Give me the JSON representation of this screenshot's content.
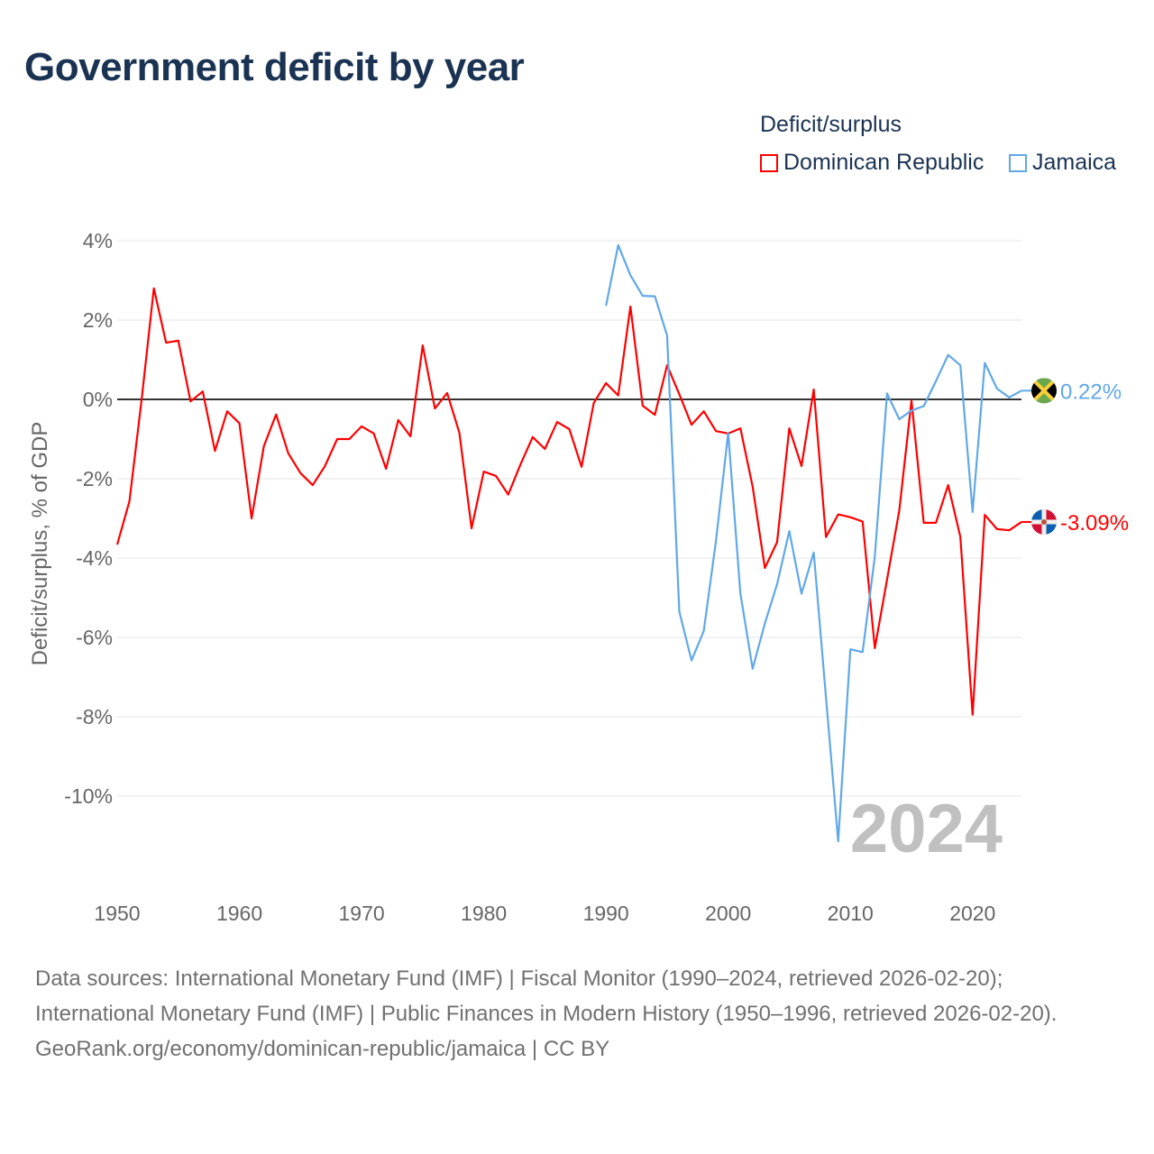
{
  "chart_data": {
    "type": "line",
    "title": "Government deficit by year",
    "ylabel": "Deficit/surplus, % of GDP",
    "xlabel": "",
    "xlim": [
      1950,
      2024
    ],
    "ylim": [
      -12,
      4
    ],
    "xticks": [
      1950,
      1960,
      1970,
      1980,
      1990,
      2000,
      2010,
      2020
    ],
    "yticks": [
      4,
      2,
      0,
      -2,
      -4,
      -6,
      -8,
      -10
    ],
    "ytick_labels": [
      "4%",
      "2%",
      "0%",
      "-2%",
      "-4%",
      "-6%",
      "-8%",
      "-10%"
    ],
    "grid": true,
    "legend_title": "Deficit/surplus",
    "legend_position": "top-right",
    "year_watermark": "2024",
    "series": [
      {
        "name": "Dominican Republic",
        "color": "#ff0000",
        "start_year": 1950,
        "end_label": "-3.09%",
        "flag": "dominican-republic-flag",
        "values": [
          -3.66,
          -2.57,
          0.0,
          2.8,
          1.43,
          1.48,
          -0.05,
          0.2,
          -1.3,
          -0.3,
          -0.6,
          -3.0,
          -1.18,
          -0.38,
          -1.36,
          -1.86,
          -2.16,
          -1.68,
          -1.0,
          -1.0,
          -0.68,
          -0.86,
          -1.75,
          -0.52,
          -0.93,
          1.36,
          -0.23,
          0.16,
          -0.84,
          -3.25,
          -1.82,
          -1.93,
          -2.4,
          -1.64,
          -0.95,
          -1.25,
          -0.57,
          -0.75,
          -1.7,
          -0.09,
          0.41,
          0.1,
          2.34,
          -0.16,
          -0.39,
          0.86,
          0.13,
          -0.64,
          -0.3,
          -0.8,
          -0.86,
          -0.73,
          -2.2,
          -4.25,
          -3.6,
          -0.73,
          -1.68,
          0.25,
          -3.47,
          -2.9,
          -2.97,
          -3.08,
          -6.27,
          -4.54,
          -2.8,
          -0.03,
          -3.11,
          -3.11,
          -2.16,
          -3.47,
          -7.95,
          -2.91,
          -3.27,
          -3.3,
          -3.09
        ]
      },
      {
        "name": "Jamaica",
        "color": "#60a8e8",
        "start_year": 1990,
        "end_label": "0.22%",
        "flag": "jamaica-flag",
        "values": [
          2.36,
          3.89,
          3.13,
          2.61,
          2.6,
          1.61,
          -5.35,
          -6.58,
          -5.84,
          -3.57,
          -0.84,
          -4.9,
          -6.79,
          -5.65,
          -4.66,
          -3.32,
          -4.9,
          -3.86,
          -7.5,
          -11.14,
          -6.3,
          -6.37,
          -3.96,
          0.15,
          -0.5,
          -0.28,
          -0.17,
          0.46,
          1.12,
          0.86,
          -2.84,
          0.92,
          0.27,
          0.05,
          0.22
        ]
      }
    ]
  },
  "footer": {
    "sources": "Data sources: International Monetary Fund (IMF) | Fiscal Monitor (1990–2024, retrieved 2026-02-20); International Monetary Fund (IMF) | Public Finances in Modern History (1950–1996, retrieved 2026-02-20).",
    "credit": "GeoRank.org/economy/dominican-republic/jamaica | CC BY"
  }
}
